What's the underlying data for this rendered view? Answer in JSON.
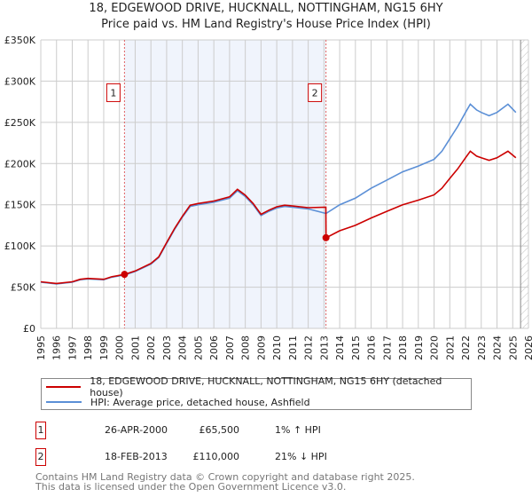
{
  "chart_data": {
    "type": "line",
    "title": "18, EDGEWOOD DRIVE, HUCKNALL, NOTTINGHAM, NG15 6HY",
    "subtitle": "Price paid vs. HM Land Registry's House Price Index (HPI)",
    "xlabel": "",
    "ylabel": "",
    "xlim": [
      1995,
      2026
    ],
    "ylim": [
      0,
      350000
    ],
    "grid": true,
    "y_ticks": [
      0,
      50000,
      100000,
      150000,
      200000,
      250000,
      300000,
      350000
    ],
    "y_tick_labels": [
      "£0",
      "£50K",
      "£100K",
      "£150K",
      "£200K",
      "£250K",
      "£300K",
      "£350K"
    ],
    "x_ticks": [
      "1995",
      "1996",
      "1997",
      "1998",
      "1999",
      "2000",
      "2001",
      "2002",
      "2003",
      "2004",
      "2005",
      "2006",
      "2007",
      "2008",
      "2009",
      "2010",
      "2011",
      "2012",
      "2013",
      "2014",
      "2015",
      "2016",
      "2017",
      "2018",
      "2019",
      "2020",
      "2021",
      "2022",
      "2023",
      "2024",
      "2025",
      "2026"
    ],
    "shaded_range": [
      2000.32,
      2013.13
    ],
    "forecast_hatch_from": 2025.5,
    "series": [
      {
        "name": "18, EDGEWOOD DRIVE, HUCKNALL, NOTTINGHAM, NG15 6HY (detached house)",
        "color": "#cc0000",
        "x": [
          1995,
          1996,
          1997,
          1997.5,
          1998,
          1999,
          1999.5,
          2000.32,
          2001,
          2002,
          2002.5,
          2003,
          2003.5,
          2004,
          2004.5,
          2005,
          2006,
          2007,
          2007.5,
          2008,
          2008.5,
          2009,
          2009.5,
          2010,
          2010.5,
          2011,
          2012,
          2013.12,
          2013.13,
          2014,
          2015,
          2016,
          2017,
          2018,
          2019,
          2020,
          2020.5,
          2021,
          2021.5,
          2022,
          2022.3,
          2022.7,
          2023,
          2023.5,
          2024,
          2024.7,
          2025.2
        ],
        "y": [
          56500,
          54500,
          56500,
          59600,
          60600,
          59600,
          62600,
          65500,
          69700,
          78800,
          86900,
          104000,
          121000,
          136000,
          149500,
          151500,
          154500,
          159600,
          168700,
          161600,
          151500,
          138400,
          143400,
          147500,
          149500,
          148500,
          146500,
          147000,
          110000,
          118500,
          125000,
          134000,
          142000,
          150000,
          155600,
          162000,
          170000,
          182000,
          193500,
          207000,
          215000,
          209000,
          207000,
          204000,
          207000,
          215000,
          207000
        ]
      },
      {
        "name": "HPI: Average price, detached house, Ashfield",
        "color": "#5b8fd6",
        "x": [
          1995,
          1996,
          1997,
          1997.5,
          1998,
          1999,
          1999.5,
          2000.32,
          2001,
          2002,
          2002.5,
          2003,
          2003.5,
          2004,
          2004.5,
          2005,
          2006,
          2007,
          2007.5,
          2008,
          2008.5,
          2009,
          2009.5,
          2010,
          2010.5,
          2011,
          2012,
          2013.13,
          2014,
          2015,
          2016,
          2017,
          2018,
          2019,
          2020,
          2020.5,
          2021,
          2021.5,
          2022,
          2022.3,
          2022.7,
          2023,
          2023.5,
          2024,
          2024.7,
          2025.2
        ],
        "y": [
          56000,
          54000,
          56000,
          59000,
          60000,
          59000,
          62000,
          64800,
          69000,
          78000,
          86000,
          103000,
          120000,
          135000,
          148000,
          150000,
          153000,
          158000,
          167000,
          160000,
          150000,
          137000,
          142000,
          146000,
          148000,
          147000,
          145000,
          139500,
          150000,
          158000,
          170000,
          180000,
          190000,
          197000,
          205000,
          215000,
          230000,
          245000,
          262000,
          272000,
          265000,
          262000,
          258000,
          262000,
          272000,
          262000
        ]
      }
    ],
    "markers": [
      {
        "label": "1",
        "x": 2000.32,
        "y": 65500
      },
      {
        "label": "2",
        "x": 2013.13,
        "y": 110000
      }
    ]
  },
  "legend": {
    "items": [
      "18, EDGEWOOD DRIVE, HUCKNALL, NOTTINGHAM, NG15 6HY (detached house)",
      "HPI: Average price, detached house, Ashfield"
    ]
  },
  "transactions": [
    {
      "num": "1",
      "date": "26-APR-2000",
      "price": "£65,500",
      "hpi": "1% ↑ HPI"
    },
    {
      "num": "2",
      "date": "18-FEB-2013",
      "price": "£110,000",
      "hpi": "21% ↓ HPI"
    }
  ],
  "footer": {
    "line1": "Contains HM Land Registry data © Crown copyright and database right 2025.",
    "line2": "This data is licensed under the Open Government Licence v3.0."
  }
}
